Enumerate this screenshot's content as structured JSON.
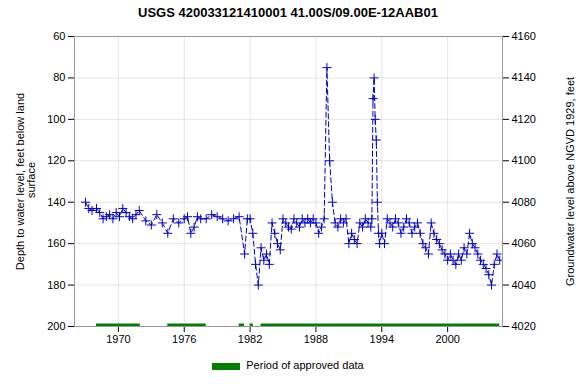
{
  "chart_data": {
    "type": "line",
    "title": "USGS 420033121410001 41.00S/09.00E-12AAB01",
    "y_label": "Depth to water level, feet below land\n surface",
    "y2_label": "Groundwater level above NGVD 1929, feet",
    "x": [
      1967.0,
      1967.3,
      1967.6,
      1968.0,
      1968.3,
      1968.6,
      1968.9,
      1969.2,
      1969.5,
      1969.8,
      1970.1,
      1970.4,
      1970.7,
      1971.0,
      1971.3,
      1971.6,
      1971.9,
      1972.5,
      1973.0,
      1973.5,
      1974.0,
      1974.5,
      1975.0,
      1975.5,
      1976.0,
      1976.3,
      1976.6,
      1976.9,
      1977.2,
      1977.5,
      1978.0,
      1978.5,
      1979.0,
      1979.5,
      1980.0,
      1980.5,
      1981.0,
      1981.5,
      1981.75,
      1982.0,
      1982.25,
      1982.5,
      1982.75,
      1983.0,
      1983.25,
      1983.5,
      1983.75,
      1984.0,
      1984.25,
      1984.5,
      1984.75,
      1985.0,
      1985.25,
      1985.5,
      1985.75,
      1986.0,
      1986.25,
      1986.5,
      1986.75,
      1987.0,
      1987.25,
      1987.5,
      1987.75,
      1988.0,
      1988.25,
      1988.5,
      1988.75,
      1989.0,
      1989.25,
      1989.5,
      1989.75,
      1990.0,
      1990.25,
      1990.5,
      1990.75,
      1991.0,
      1991.25,
      1991.5,
      1991.75,
      1992.0,
      1992.25,
      1992.5,
      1992.75,
      1993.0,
      1993.1,
      1993.2,
      1993.3,
      1993.4,
      1993.5,
      1993.6,
      1993.7,
      1993.8,
      1994.0,
      1994.25,
      1994.5,
      1994.75,
      1995.0,
      1995.25,
      1995.5,
      1995.75,
      1996.0,
      1996.25,
      1996.5,
      1996.75,
      1997.0,
      1997.25,
      1997.5,
      1997.75,
      1998.0,
      1998.25,
      1998.5,
      1998.75,
      1999.0,
      1999.25,
      1999.5,
      1999.75,
      2000.0,
      2000.25,
      2000.5,
      2000.75,
      2001.0,
      2001.25,
      2001.5,
      2001.75,
      2002.0,
      2002.25,
      2002.5,
      2002.75,
      2003.0,
      2003.25,
      2003.5,
      2003.75,
      2004.0,
      2004.25,
      2004.5,
      2004.75
    ],
    "values": [
      140,
      143,
      144,
      143,
      145,
      148,
      147,
      146,
      148,
      145,
      147,
      143,
      145,
      147,
      148,
      146,
      144,
      149,
      151,
      146,
      150,
      155,
      148,
      150,
      148,
      147,
      155,
      152,
      147,
      148,
      148,
      146,
      147,
      148,
      149,
      148,
      147,
      165,
      148,
      148,
      155,
      170,
      180,
      162,
      168,
      165,
      170,
      150,
      155,
      160,
      163,
      148,
      150,
      152,
      153,
      148,
      150,
      152,
      148,
      150,
      148,
      150,
      148,
      150,
      155,
      152,
      148,
      75,
      120,
      140,
      150,
      152,
      148,
      150,
      148,
      160,
      155,
      158,
      160,
      150,
      152,
      148,
      150,
      152,
      148,
      90,
      80,
      100,
      110,
      140,
      155,
      160,
      155,
      160,
      148,
      150,
      152,
      148,
      150,
      155,
      152,
      148,
      150,
      155,
      152,
      150,
      155,
      160,
      162,
      165,
      150,
      155,
      158,
      160,
      163,
      165,
      168,
      165,
      168,
      170,
      165,
      168,
      162,
      165,
      155,
      160,
      162,
      165,
      168,
      170,
      172,
      175,
      180,
      170,
      165,
      168
    ],
    "color": "#0000cc",
    "marker": "plus",
    "line_style": "dashed",
    "xlim": [
      1966,
      2005
    ],
    "xticks": [
      1970,
      1976,
      1982,
      1988,
      1994,
      2000
    ],
    "ylim": [
      200,
      60
    ],
    "yticks": [
      60,
      80,
      100,
      120,
      140,
      160,
      180,
      200
    ],
    "y2lim": [
      4020,
      4160
    ],
    "y2ticks": [
      4020,
      4040,
      4060,
      4080,
      4100,
      4120,
      4140,
      4160
    ],
    "grid": true,
    "legend": "bottom",
    "approved_periods": {
      "name": "Period of approved data",
      "color": "#008000",
      "y": 200,
      "ranges": [
        [
          1968.0,
          1972.0
        ],
        [
          1974.5,
          1978.0
        ],
        [
          1981.0,
          1981.5
        ],
        [
          1982.0,
          1982.3
        ],
        [
          1983.0,
          2004.75
        ]
      ]
    }
  }
}
